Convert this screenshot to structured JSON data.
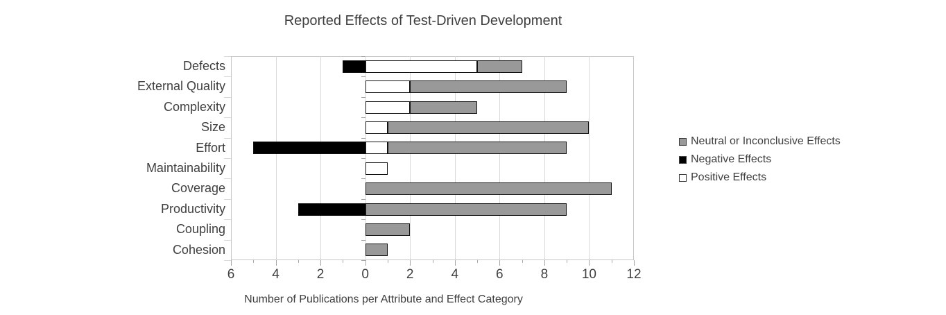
{
  "chart_data": {
    "type": "bar",
    "orientation": "horizontal",
    "title": "Reported Effects of Test-Driven Development",
    "xlabel": "Number of Publications per Attribute and Effect Category",
    "categories": [
      "Defects",
      "External Quality",
      "Complexity",
      "Size",
      "Effort",
      "Maintainability",
      "Coverage",
      "Productivity",
      "Coupling",
      "Cohesion"
    ],
    "series": [
      {
        "name": "Neutral or Inconclusive Effects",
        "key": "neutral",
        "color": "#999999",
        "direction": "right",
        "values": [
          2,
          7,
          3,
          9,
          8,
          0,
          11,
          9,
          2,
          1
        ]
      },
      {
        "name": "Negative Effects",
        "key": "negative",
        "color": "#000000",
        "direction": "left",
        "values": [
          1,
          0,
          0,
          0,
          5,
          0,
          0,
          3,
          0,
          0
        ]
      },
      {
        "name": "Positive Effects",
        "key": "positive",
        "color": "#ffffff",
        "direction": "right",
        "values": [
          5,
          2,
          2,
          1,
          1,
          1,
          0,
          0,
          0,
          0
        ]
      }
    ],
    "stack_order_from_zero": [
      "positive",
      "neutral"
    ],
    "xlim": [
      -6,
      12
    ],
    "x_tick_step_major": 2,
    "x_tick_step_minor": 1,
    "x_tick_labels": [
      "6",
      "4",
      "2",
      "0",
      "2",
      "4",
      "6",
      "8",
      "10",
      "12"
    ],
    "grid": true,
    "legend_position": "right"
  },
  "colors": {
    "bar_border": "#111111",
    "gridline": "#d9d9d9",
    "plot_border": "#c6c6c6",
    "axis_tick": "#a6a6a6",
    "text": "#3f3f3f",
    "background": "#ffffff"
  }
}
